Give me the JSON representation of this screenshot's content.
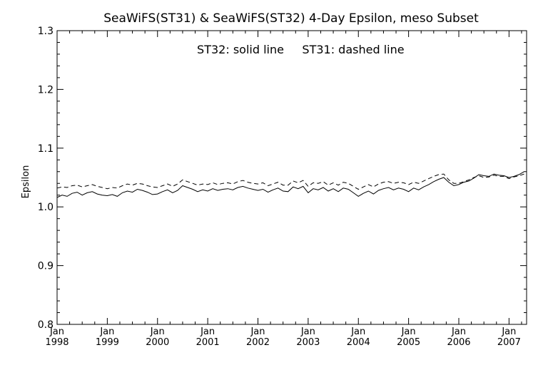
{
  "chart_data": {
    "type": "line",
    "title": "SeaWiFS(ST31) & SeaWiFS(ST32) 4-Day Epsilon, meso Subset",
    "annotation_left": "ST32: solid line",
    "annotation_right": "ST31: dashed line",
    "xlabel": "",
    "ylabel": "Epsilon",
    "xlim": [
      1998.0,
      2007.35
    ],
    "ylim": [
      0.8,
      1.3
    ],
    "yticks": [
      "0.8",
      "0.9",
      "1.0",
      "1.1",
      "1.2",
      "1.3"
    ],
    "xticks": [
      {
        "month": "Jan",
        "year": "1998"
      },
      {
        "month": "Jan",
        "year": "1999"
      },
      {
        "month": "Jan",
        "year": "2000"
      },
      {
        "month": "Jan",
        "year": "2001"
      },
      {
        "month": "Jan",
        "year": "2002"
      },
      {
        "month": "Jan",
        "year": "2003"
      },
      {
        "month": "Jan",
        "year": "2004"
      },
      {
        "month": "Jan",
        "year": "2005"
      },
      {
        "month": "Jan",
        "year": "2006"
      },
      {
        "month": "Jan",
        "year": "2007"
      }
    ],
    "grid": false,
    "series": [
      {
        "name": "ST32",
        "style": "solid",
        "x": [
          1998.0,
          1998.1,
          1998.2,
          1998.3,
          1998.4,
          1998.5,
          1998.6,
          1998.7,
          1998.8,
          1998.9,
          1999.0,
          1999.1,
          1999.2,
          1999.3,
          1999.4,
          1999.5,
          1999.6,
          1999.7,
          1999.8,
          1999.9,
          2000.0,
          2000.1,
          2000.2,
          2000.3,
          2000.4,
          2000.5,
          2000.6,
          2000.7,
          2000.8,
          2000.9,
          2001.0,
          2001.1,
          2001.2,
          2001.3,
          2001.4,
          2001.5,
          2001.6,
          2001.7,
          2001.8,
          2001.9,
          2002.0,
          2002.1,
          2002.2,
          2002.3,
          2002.4,
          2002.5,
          2002.6,
          2002.7,
          2002.8,
          2002.9,
          2003.0,
          2003.1,
          2003.2,
          2003.3,
          2003.4,
          2003.5,
          2003.6,
          2003.7,
          2003.8,
          2003.9,
          2004.0,
          2004.1,
          2004.2,
          2004.3,
          2004.4,
          2004.5,
          2004.6,
          2004.7,
          2004.8,
          2004.9,
          2005.0,
          2005.1,
          2005.2,
          2005.3,
          2005.4,
          2005.5,
          2005.6,
          2005.7,
          2005.8,
          2005.9,
          2006.0,
          2006.1,
          2006.2,
          2006.3,
          2006.4,
          2006.5,
          2006.6,
          2006.7,
          2006.8,
          2006.9,
          2007.0,
          2007.1,
          2007.2,
          2007.3
        ],
        "y": [
          1.016,
          1.02,
          1.018,
          1.023,
          1.025,
          1.02,
          1.024,
          1.026,
          1.022,
          1.02,
          1.019,
          1.021,
          1.018,
          1.024,
          1.027,
          1.025,
          1.03,
          1.028,
          1.025,
          1.021,
          1.022,
          1.026,
          1.029,
          1.024,
          1.028,
          1.036,
          1.033,
          1.03,
          1.026,
          1.029,
          1.027,
          1.031,
          1.028,
          1.03,
          1.031,
          1.029,
          1.033,
          1.035,
          1.032,
          1.03,
          1.028,
          1.03,
          1.025,
          1.029,
          1.032,
          1.027,
          1.026,
          1.034,
          1.031,
          1.035,
          1.024,
          1.031,
          1.029,
          1.033,
          1.027,
          1.031,
          1.026,
          1.032,
          1.03,
          1.024,
          1.018,
          1.023,
          1.027,
          1.022,
          1.028,
          1.031,
          1.033,
          1.029,
          1.032,
          1.03,
          1.026,
          1.032,
          1.029,
          1.034,
          1.038,
          1.043,
          1.047,
          1.05,
          1.042,
          1.036,
          1.038,
          1.042,
          1.044,
          1.049,
          1.055,
          1.053,
          1.052,
          1.056,
          1.054,
          1.053,
          1.05,
          1.052,
          1.055,
          1.06
        ]
      },
      {
        "name": "ST31",
        "style": "dashed",
        "x": [
          1998.0,
          1998.1,
          1998.2,
          1998.3,
          1998.4,
          1998.5,
          1998.6,
          1998.7,
          1998.8,
          1998.9,
          1999.0,
          1999.1,
          1999.2,
          1999.3,
          1999.4,
          1999.5,
          1999.6,
          1999.7,
          1999.8,
          1999.9,
          2000.0,
          2000.1,
          2000.2,
          2000.3,
          2000.4,
          2000.5,
          2000.6,
          2000.7,
          2000.8,
          2000.9,
          2001.0,
          2001.1,
          2001.2,
          2001.3,
          2001.4,
          2001.5,
          2001.6,
          2001.7,
          2001.8,
          2001.9,
          2002.0,
          2002.1,
          2002.2,
          2002.3,
          2002.4,
          2002.5,
          2002.6,
          2002.7,
          2002.8,
          2002.9,
          2003.0,
          2003.1,
          2003.2,
          2003.3,
          2003.4,
          2003.5,
          2003.6,
          2003.7,
          2003.8,
          2003.9,
          2004.0,
          2004.1,
          2004.2,
          2004.3,
          2004.4,
          2004.5,
          2004.6,
          2004.7,
          2004.8,
          2004.9,
          2005.0,
          2005.1,
          2005.2,
          2005.3,
          2005.4,
          2005.5,
          2005.6,
          2005.7,
          2005.8,
          2005.9,
          2006.0,
          2006.1,
          2006.2,
          2006.3,
          2006.4,
          2006.5,
          2006.6,
          2006.7,
          2006.8,
          2006.9,
          2007.0,
          2007.1,
          2007.2,
          2007.3
        ],
        "y": [
          1.032,
          1.034,
          1.033,
          1.036,
          1.037,
          1.034,
          1.036,
          1.038,
          1.035,
          1.033,
          1.031,
          1.033,
          1.032,
          1.036,
          1.039,
          1.037,
          1.04,
          1.039,
          1.036,
          1.034,
          1.033,
          1.036,
          1.039,
          1.035,
          1.039,
          1.046,
          1.043,
          1.04,
          1.037,
          1.039,
          1.038,
          1.041,
          1.038,
          1.04,
          1.041,
          1.039,
          1.043,
          1.045,
          1.042,
          1.04,
          1.039,
          1.041,
          1.036,
          1.039,
          1.042,
          1.037,
          1.037,
          1.044,
          1.041,
          1.045,
          1.035,
          1.041,
          1.04,
          1.043,
          1.037,
          1.041,
          1.037,
          1.042,
          1.04,
          1.035,
          1.03,
          1.034,
          1.038,
          1.034,
          1.039,
          1.042,
          1.043,
          1.04,
          1.042,
          1.041,
          1.038,
          1.042,
          1.04,
          1.044,
          1.048,
          1.052,
          1.055,
          1.056,
          1.046,
          1.04,
          1.04,
          1.043,
          1.046,
          1.05,
          1.053,
          1.05,
          1.051,
          1.054,
          1.052,
          1.052,
          1.048,
          1.051,
          1.053,
          1.056
        ]
      }
    ]
  }
}
